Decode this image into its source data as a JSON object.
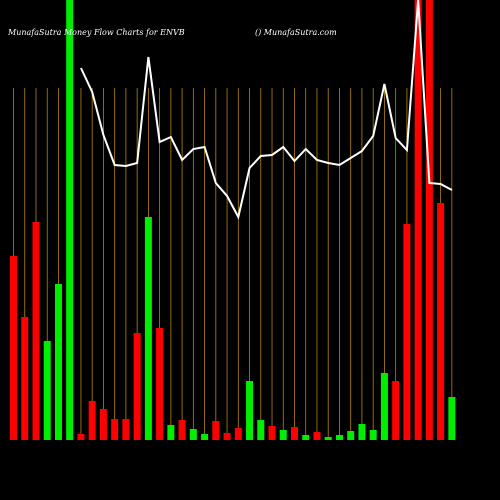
{
  "chart_data": {
    "type": "bar-line",
    "title": "MunafaSutra Money Flow Charts for ENVB",
    "subtitle": "() MunafaSutra.com",
    "ylim": [
      0,
      440
    ],
    "bars": {
      "values": [
        184,
        123,
        218,
        99,
        156,
        440,
        6,
        39,
        31,
        21,
        21,
        107,
        223,
        112,
        15,
        20,
        11,
        6,
        19,
        7,
        12,
        59,
        20,
        14,
        10,
        13,
        5,
        8,
        3,
        5,
        9,
        16,
        10,
        67,
        59,
        216,
        440,
        440,
        237,
        43
      ],
      "colors": [
        "#ff0000",
        "#ff0000",
        "#ff0000",
        "#00ee00",
        "#00ee00",
        "#00ee00",
        "#ff0000",
        "#ff0000",
        "#ff0000",
        "#ff0000",
        "#ff0000",
        "#ff0000",
        "#00ee00",
        "#ff0000",
        "#00ee00",
        "#ff0000",
        "#00ee00",
        "#00ee00",
        "#ff0000",
        "#ff0000",
        "#ff0000",
        "#00ee00",
        "#00ee00",
        "#ff0000",
        "#00ee00",
        "#ff0000",
        "#00ee00",
        "#ff0000",
        "#00ee00",
        "#00ee00",
        "#00ee00",
        "#00ee00",
        "#00ee00",
        "#00ee00",
        "#ff0000",
        "#ff0000",
        "#ff0000",
        "#ff0000",
        "#ff0000",
        "#00ee00"
      ]
    },
    "line": {
      "color": "#ffffff",
      "values": [
        null,
        null,
        null,
        null,
        null,
        null,
        372,
        348,
        305,
        275,
        274,
        277,
        383,
        298,
        303,
        280,
        291,
        293,
        257,
        244,
        223,
        272,
        284,
        285,
        293,
        279,
        291,
        280,
        277,
        275,
        282,
        289,
        304,
        356,
        302,
        290,
        440,
        257,
        256,
        250
      ]
    }
  }
}
